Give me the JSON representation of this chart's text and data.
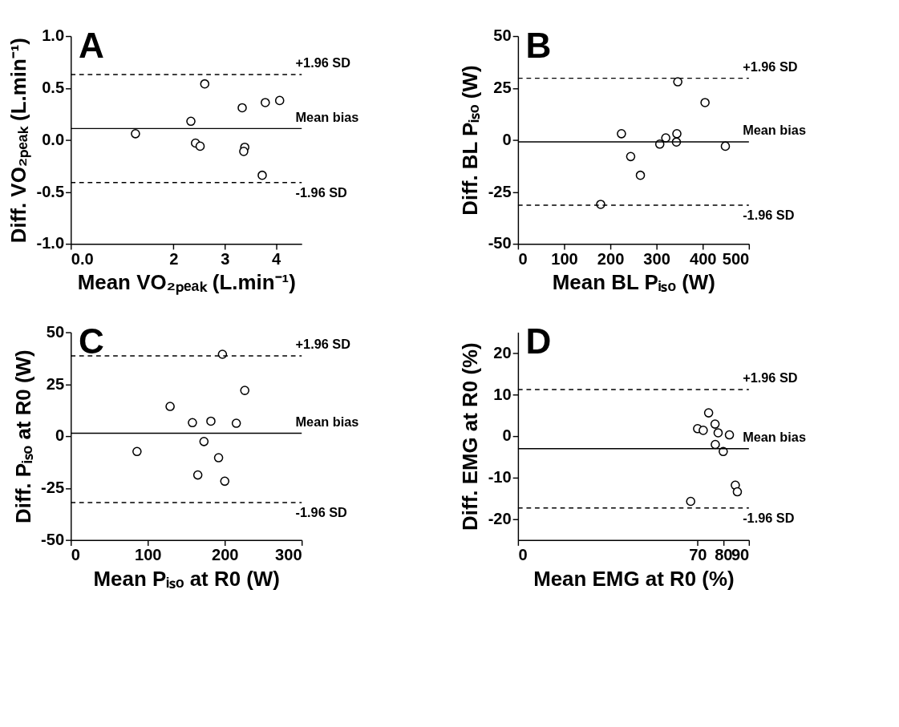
{
  "chart_data": [
    {
      "type": "scatter",
      "xlabel": "Mean VO₂ₚₑₐₖ (L.min⁻¹)",
      "ylabel": "Diff. VO₂ₚₑₐₖ (L.min⁻¹)",
      "annotations": [
        "A"
      ],
      "marker": "circle",
      "grid": false,
      "xlim": [
        0,
        4.5
      ],
      "xticks": [
        {
          "value": 0,
          "label": "0.0"
        },
        2,
        3,
        4
      ],
      "ylim": [
        -1,
        1
      ],
      "yticks": [
        {
          "value": -1,
          "label": "-1.0"
        },
        {
          "value": -0.5,
          "label": "-0.5"
        },
        {
          "value": 0,
          "label": "0.0"
        },
        {
          "value": 0.5,
          "label": "0.5"
        },
        {
          "value": 1,
          "label": "1.0"
        }
      ],
      "series": [
        {
          "color": "#000000",
          "x": [
            1.26,
            2.34,
            2.61,
            2.43,
            2.52,
            3.34,
            3.39,
            3.37,
            3.79,
            4.07,
            3.73
          ],
          "values": [
            0.06,
            0.18,
            0.54,
            -0.03,
            -0.06,
            0.31,
            -0.07,
            -0.11,
            0.36,
            0.38,
            -0.34
          ]
        }
      ],
      "ref_lines": [
        {
          "axis": "y",
          "value": 0.63,
          "label": "+1.96 SD",
          "line_style": "dashed",
          "color": "#000000"
        },
        {
          "axis": "y",
          "value": 0.11,
          "label": "Mean bias",
          "line_style": "solid",
          "color": "#000000"
        },
        {
          "axis": "y",
          "value": -0.41,
          "label": "-1.96 SD",
          "line_style": "dashed",
          "color": "#000000"
        }
      ]
    },
    {
      "type": "scatter",
      "xlabel": "Mean BL Pᵢₛₒ (W)",
      "ylabel": "Diff. BL Pᵢₛₒ (W)",
      "annotations": [
        "B"
      ],
      "marker": "circle",
      "grid": false,
      "xlim": [
        0,
        500
      ],
      "xticks": [
        0,
        100,
        200,
        300,
        400,
        500
      ],
      "ylim": [
        -50,
        50
      ],
      "yticks": [
        -50,
        -25,
        0,
        25,
        50
      ],
      "series": [
        {
          "color": "#000000",
          "x": [
            179,
            224,
            244,
            265,
            307,
            320,
            343,
            344,
            346,
            405,
            449
          ],
          "values": [
            -31,
            3,
            -8,
            -17,
            -2,
            1,
            -1,
            3,
            28,
            18,
            -3
          ]
        }
      ],
      "ref_lines": [
        {
          "axis": "y",
          "value": 29.7,
          "label": "+1.96 SD",
          "line_style": "dashed",
          "color": "#000000"
        },
        {
          "axis": "y",
          "value": -0.9,
          "label": "Mean bias",
          "line_style": "solid",
          "color": "#000000"
        },
        {
          "axis": "y",
          "value": -31.4,
          "label": "-1.96 SD",
          "line_style": "dashed",
          "color": "#000000"
        }
      ]
    },
    {
      "type": "scatter",
      "xlabel": "Mean Pᵢₛₒ at R0 (W)",
      "ylabel": "Diff. Pᵢₛₒ at R0 (W)",
      "annotations": [
        "C"
      ],
      "marker": "circle",
      "grid": false,
      "xlim": [
        0,
        300
      ],
      "xticks": [
        0,
        100,
        200,
        300
      ],
      "ylim": [
        -50,
        50
      ],
      "yticks": [
        -50,
        -25,
        0,
        25,
        50
      ],
      "series": [
        {
          "color": "#000000",
          "x": [
            86,
            129,
            158,
            165,
            173,
            182,
            192,
            197,
            200,
            215,
            226
          ],
          "values": [
            -7.4,
            14.3,
            6.5,
            -18.7,
            -2.6,
            7.2,
            -10.4,
            39.4,
            -21.7,
            6.2,
            22
          ]
        }
      ],
      "ref_lines": [
        {
          "axis": "y",
          "value": 38.6,
          "label": "+1.96 SD",
          "line_style": "dashed",
          "color": "#000000"
        },
        {
          "axis": "y",
          "value": 1.4,
          "label": "Mean bias",
          "line_style": "solid",
          "color": "#000000"
        },
        {
          "axis": "y",
          "value": -32,
          "label": "-1.96 SD",
          "line_style": "dashed",
          "color": "#000000"
        }
      ]
    },
    {
      "type": "scatter",
      "xlabel": "Mean EMG at R0 (%)",
      "ylabel": "Diff. EMG at R0 (%)",
      "annotations": [
        "D"
      ],
      "marker": "circle",
      "grid": false,
      "xlim": [
        0,
        90
      ],
      "xticks": [
        0,
        70,
        80,
        90
      ],
      "ylim": [
        -25,
        25
      ],
      "yticks": [
        -20,
        -10,
        0,
        10,
        20
      ],
      "series": [
        {
          "color": "#000000",
          "x": [
            67.3,
            70,
            72.2,
            74.3,
            76.8,
            76.9,
            78,
            80,
            82.4,
            84.7,
            85.5
          ],
          "values": [
            -15.7,
            1.8,
            1.4,
            5.6,
            2.9,
            -2.0,
            0.8,
            -3.7,
            0.3,
            -11.8,
            -13.4
          ]
        }
      ],
      "ref_lines": [
        {
          "axis": "y",
          "value": 11.2,
          "label": "+1.96 SD",
          "line_style": "dashed",
          "color": "#000000"
        },
        {
          "axis": "y",
          "value": -3.0,
          "label": "Mean bias",
          "line_style": "solid",
          "color": "#000000"
        },
        {
          "axis": "y",
          "value": -17.3,
          "label": "-1.96 SD",
          "line_style": "dashed",
          "color": "#000000"
        }
      ]
    }
  ]
}
